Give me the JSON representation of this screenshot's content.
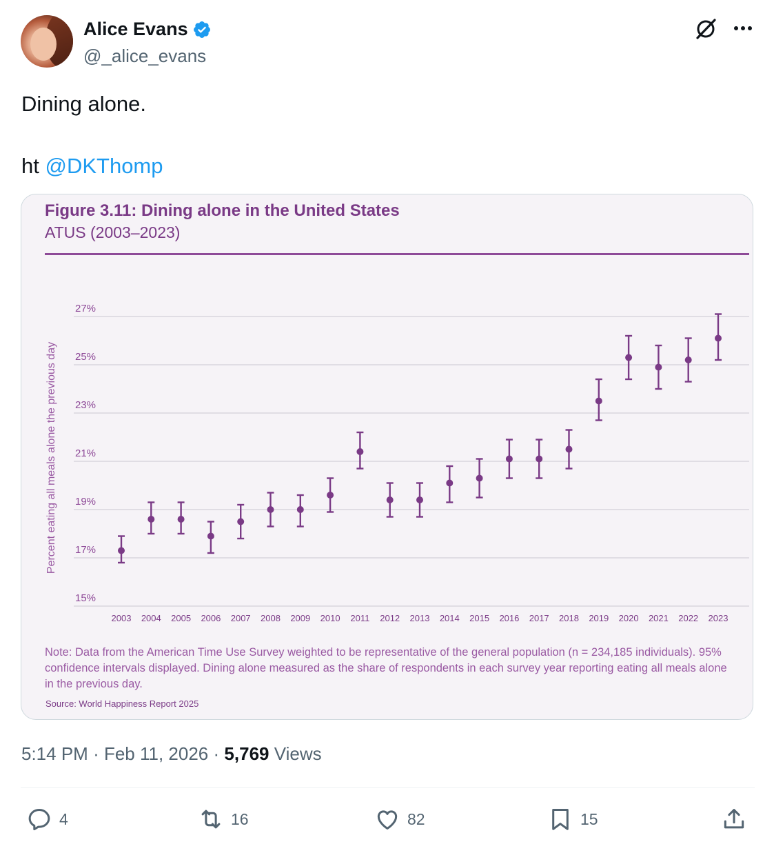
{
  "author": {
    "name": "Alice Evans",
    "handle": "@_alice_evans"
  },
  "tweet": {
    "line1": "Dining alone.",
    "ht_prefix": "ht",
    "mention": "@DKThomp"
  },
  "figure": {
    "title": "Figure 3.11: Dining alone in the United States",
    "subtitle": "ATUS (2003–2023)",
    "note": "Note: Data from the American Time Use Survey weighted to be representative of the general population (n = 234,185 individuals). 95% confidence intervals displayed. Dining alone measured as the share of respondents in each survey year reporting eating all meals alone in the previous day.",
    "source": "Source: World Happiness Report 2025"
  },
  "chart_data": {
    "type": "scatter",
    "title": "Figure 3.11: Dining alone in the United States",
    "subtitle": "ATUS (2003–2023)",
    "ylabel": "Percent eating all meals alone the previous day",
    "xlabel": "",
    "ylim": [
      15,
      27
    ],
    "yticks": [
      "15%",
      "17%",
      "19%",
      "21%",
      "23%",
      "25%",
      "27%"
    ],
    "ytick_values": [
      15,
      17,
      19,
      21,
      23,
      25,
      27
    ],
    "categories": [
      "2003",
      "2004",
      "2005",
      "2006",
      "2007",
      "2008",
      "2009",
      "2010",
      "2011",
      "2012",
      "2013",
      "2014",
      "2015",
      "2016",
      "2017",
      "2018",
      "2019",
      "2020",
      "2021",
      "2022",
      "2023"
    ],
    "values": [
      17.3,
      18.6,
      18.6,
      17.9,
      18.5,
      19.0,
      19.0,
      19.6,
      21.4,
      19.4,
      19.4,
      20.1,
      20.3,
      21.1,
      21.1,
      21.5,
      23.5,
      25.3,
      24.9,
      25.2,
      26.1
    ],
    "ci_low": [
      16.8,
      18.0,
      18.0,
      17.2,
      17.8,
      18.3,
      18.3,
      18.9,
      20.7,
      18.7,
      18.7,
      19.3,
      19.5,
      20.3,
      20.3,
      20.7,
      22.7,
      24.4,
      24.0,
      24.3,
      25.2
    ],
    "ci_high": [
      17.9,
      19.3,
      19.3,
      18.5,
      19.2,
      19.7,
      19.6,
      20.3,
      22.2,
      20.1,
      20.1,
      20.8,
      21.1,
      21.9,
      21.9,
      22.3,
      24.4,
      26.2,
      25.8,
      26.1,
      27.1
    ],
    "grid": true,
    "legend": "none",
    "colors": {
      "marker": "#7a3a86",
      "grid": "#d4d0d8",
      "axis_text": "#8e4a98"
    }
  },
  "meta": {
    "time": "5:14 PM",
    "sep1": "·",
    "date": "Feb 11, 2026",
    "sep2": "·",
    "views_count": "5,769",
    "views_label": "Views"
  },
  "actions": {
    "replies": "4",
    "reposts": "16",
    "likes": "82",
    "bookmarks": "15"
  },
  "icons": {
    "verified": "verified-badge-icon",
    "grok": "grok-icon",
    "more": "more-dots-icon",
    "reply": "reply-icon",
    "repost": "repost-icon",
    "like": "heart-icon",
    "bookmark": "bookmark-icon",
    "share": "share-icon"
  },
  "colors": {
    "link": "#1d9bf0",
    "verified": "#1d9bf0",
    "muted": "#536471",
    "figure_purple": "#7a3a86"
  }
}
